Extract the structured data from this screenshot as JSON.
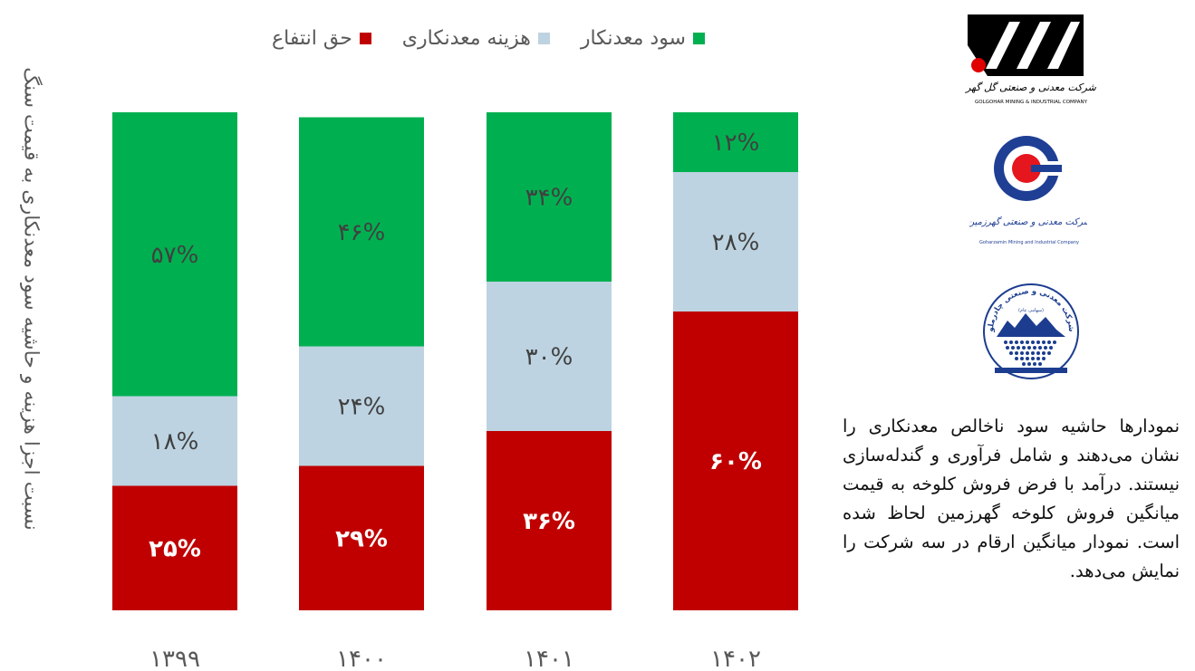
{
  "chart_data": {
    "type": "bar",
    "stacked": true,
    "normalized": true,
    "categories": [
      "۱۳۹۹",
      "۱۴۰۰",
      "۱۴۰۱",
      "۱۴۰۲"
    ],
    "series": [
      {
        "name": "حق انتفاع",
        "color": "#C00000",
        "values": [
          25,
          29,
          36,
          60
        ],
        "labels": [
          "۲۵%",
          "۲۹%",
          "۳۶%",
          "۶۰%"
        ]
      },
      {
        "name": "هزینه معدنکاری",
        "color": "#BDD3E1",
        "values": [
          18,
          24,
          30,
          28
        ],
        "labels": [
          "۱۸%",
          "۲۴%",
          "۳۰%",
          "۲۸%"
        ]
      },
      {
        "name": "سود معدنکار",
        "color": "#00B050",
        "values": [
          57,
          46,
          34,
          12
        ],
        "labels": [
          "۵۷%",
          "۴۶%",
          "۳۴%",
          "۱۲%"
        ]
      }
    ],
    "ylabel": "نسبت اجزا هزینه و حاشیه سود معدنکاری به قیمت سنگ",
    "ylim": [
      0,
      100
    ],
    "legend_position": "top",
    "grid": false
  },
  "logos": [
    {
      "name": "golgohar",
      "caption_fa": "شرکت معدنی و صنعتی گل گهر",
      "caption_en": "GOLGOHAR MINING & INDUSTRIAL COMPANY"
    },
    {
      "name": "goharzamin",
      "caption_fa": "شرکت معدنی و صنعتی گهرزمین",
      "caption_en": "Goharzamin Mining and Industrial Company"
    },
    {
      "name": "chadormalu",
      "caption_fa": "شرکت معدنی و صنعتی چادرملو",
      "caption_sub": "(سهامی عام)"
    }
  ],
  "description": "نمودارها حاشیه سود ناخالص معدنکاری را نشان می‌دهند و شامل فرآوری و گندله‌سازی نیستند. درآمد با فرض فروش کلوخه به قیمت میانگین فروش کلوخه گهرزمین لحاظ شده است. نمودار میانگین ارقام در سه شرکت را نمایش می‌دهد."
}
